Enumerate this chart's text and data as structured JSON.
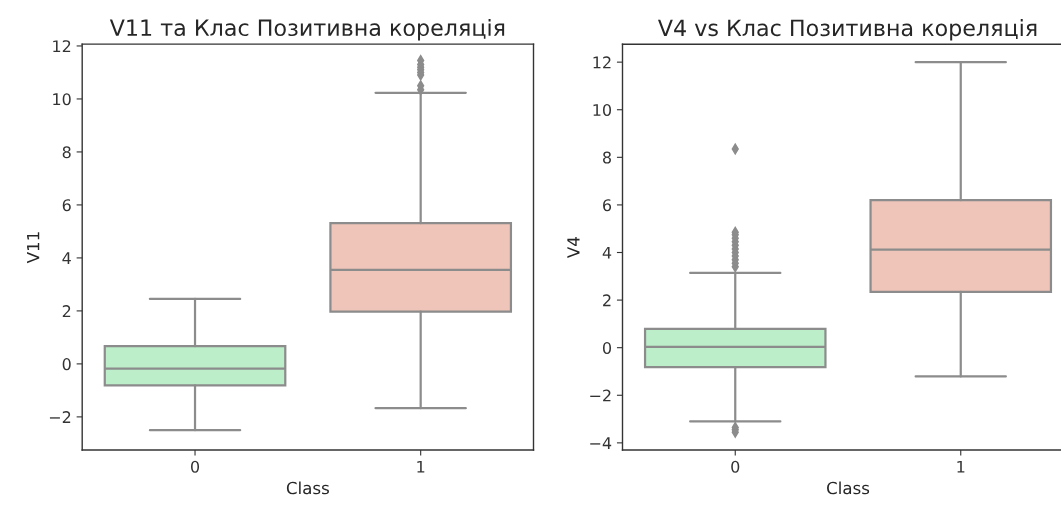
{
  "chart_data": [
    {
      "type": "box",
      "title": "V11 та Клас Позитивна кореляція",
      "xlabel": "Class",
      "ylabel": "V11",
      "categories": [
        "0",
        "1"
      ],
      "colors": [
        "#bbeec9",
        "#f0c5b9"
      ],
      "marker": "diamond",
      "boxes": [
        {
          "low": -2.5,
          "q1": -0.81,
          "median": -0.18,
          "q3": 0.67,
          "high": 2.45
        },
        {
          "low": -1.67,
          "q1": 1.97,
          "median": 3.55,
          "q3": 5.31,
          "high": 10.23,
          "outliers": [
            10.35,
            10.5,
            10.9,
            11.0,
            11.1,
            11.2,
            11.3,
            11.45
          ]
        }
      ],
      "ylim": [
        -3.25,
        12.07
      ],
      "yticks": [
        -2,
        0,
        2,
        4,
        6,
        8,
        10,
        12
      ]
    },
    {
      "type": "box",
      "title": "V4 vs Клас Позитивна кореляція",
      "xlabel": "Class",
      "ylabel": "V4",
      "categories": [
        "0",
        "1"
      ],
      "colors": [
        "#bbeec9",
        "#f0c5b9"
      ],
      "marker": "diamond",
      "boxes": [
        {
          "low": -3.1,
          "q1": -0.82,
          "median": 0.03,
          "q3": 0.79,
          "high": 3.14,
          "outliers": [
            -3.55,
            -3.45,
            -3.35,
            3.4,
            3.55,
            3.7,
            3.85,
            4.0,
            4.15,
            4.3,
            4.45,
            4.6,
            4.75,
            4.85,
            8.35
          ]
        },
        {
          "low": -1.21,
          "q1": 2.35,
          "median": 4.12,
          "q3": 6.2,
          "high": 12.0
        }
      ],
      "ylim": [
        -4.3,
        12.75
      ],
      "yticks": [
        -4,
        -2,
        0,
        2,
        4,
        6,
        8,
        10,
        12
      ]
    }
  ]
}
